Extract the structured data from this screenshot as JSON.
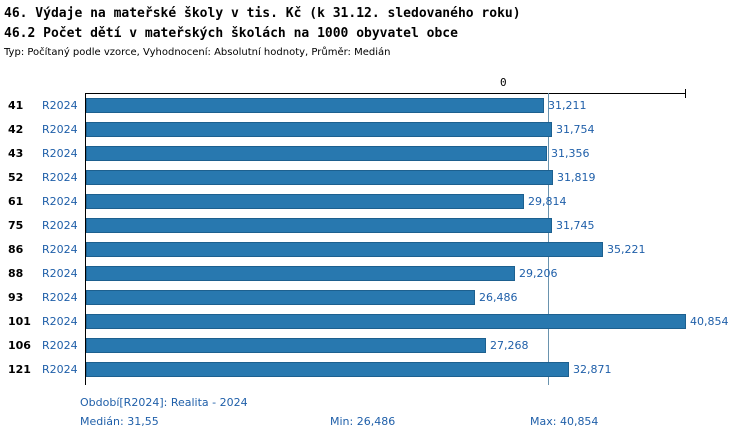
{
  "title1": "46. Výdaje na mateřské školy v tis. Kč (k 31.12. sledovaného roku)",
  "title2": "46.2 Počet dětí v mateřských školách na 1000 obyvatel obce",
  "subtitle": "Typ: Počítaný podle vzorce, Vyhodnocení: Absolutní hodnoty, Průměr: Medián",
  "axis_zero_label": "0",
  "chart_data": {
    "type": "bar",
    "orientation": "horizontal",
    "title": "46. Výdaje na mateřské školy v tis. Kč (k 31.12. sledovaného roku) — 46.2 Počet dětí v mateřských školách na 1000 obyvatel obce",
    "categories": [
      "41",
      "42",
      "43",
      "52",
      "61",
      "75",
      "86",
      "88",
      "93",
      "101",
      "106",
      "121"
    ],
    "series_label": "R2024",
    "values": [
      31.211,
      31.754,
      31.356,
      31.819,
      29.814,
      31.745,
      35.221,
      29.206,
      26.486,
      40.854,
      27.268,
      32.871
    ],
    "value_labels": [
      "31,211",
      "31,754",
      "31,356",
      "31,819",
      "29,814",
      "31,745",
      "35,221",
      "29,206",
      "26,486",
      "40,854",
      "27,268",
      "32,871"
    ],
    "xlim": [
      0,
      40.854
    ],
    "median_value": 31.55,
    "bar_color": "#2878af",
    "bar_border_color": "#1d608f",
    "median_line_color": "#6a93ae",
    "grid": false,
    "legend_position": "bottom"
  },
  "footer": {
    "period": "Období[R2024]: Realita - 2024",
    "median": "Medián: 31,55",
    "min": "Min: 26,486",
    "max": "Max: 40,854"
  }
}
